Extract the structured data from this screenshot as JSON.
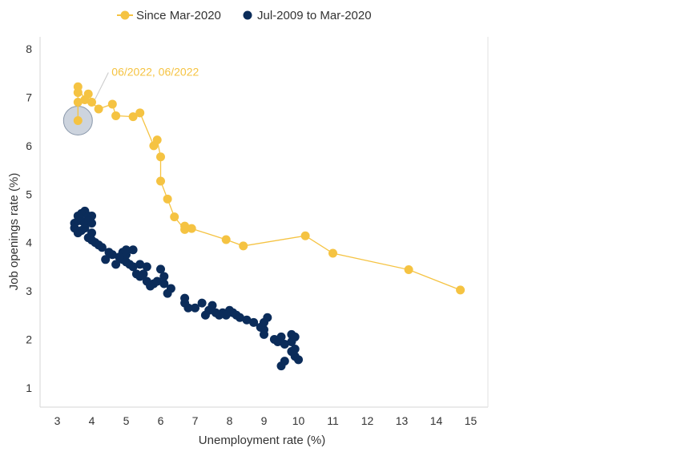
{
  "chart_data": {
    "type": "scatter",
    "xlabel": "Unemployment rate (%)",
    "ylabel": "Job openings rate (%)",
    "xlim": [
      2.5,
      15.5
    ],
    "ylim": [
      0.6,
      8.25
    ],
    "xticks": [
      "3",
      "4",
      "5",
      "6",
      "7",
      "8",
      "9",
      "10",
      "11",
      "12",
      "13",
      "14",
      "15"
    ],
    "yticks": [
      "1",
      "2",
      "3",
      "4",
      "5",
      "6",
      "7",
      "8"
    ],
    "grid": false,
    "legend_position": "top-center",
    "colors": {
      "since_mar_2020": "#f5c342",
      "jul2009_mar2020": "#0b2c5a",
      "highlight": "#a4b1c2"
    },
    "annotation": {
      "text": "06/2022, 06/2022",
      "x": 3.6,
      "y": 6.52
    },
    "series": [
      {
        "name": "Since Mar-2020",
        "style": "line+markers",
        "points": [
          [
            14.7,
            3.02
          ],
          [
            13.2,
            3.44
          ],
          [
            11.0,
            3.78
          ],
          [
            10.2,
            4.14
          ],
          [
            8.4,
            3.93
          ],
          [
            7.9,
            4.06
          ],
          [
            6.9,
            4.29
          ],
          [
            6.7,
            4.34
          ],
          [
            6.7,
            4.27
          ],
          [
            6.4,
            4.53
          ],
          [
            6.2,
            4.9
          ],
          [
            6.0,
            5.27
          ],
          [
            6.0,
            5.77
          ],
          [
            5.9,
            6.12
          ],
          [
            5.8,
            6.0
          ],
          [
            5.4,
            6.68
          ],
          [
            5.2,
            6.6
          ],
          [
            4.7,
            6.62
          ],
          [
            4.6,
            6.86
          ],
          [
            4.2,
            6.76
          ],
          [
            4.0,
            6.9
          ],
          [
            3.9,
            7.07
          ],
          [
            3.8,
            6.95
          ],
          [
            3.6,
            7.22
          ],
          [
            3.6,
            7.1
          ],
          [
            3.6,
            6.9
          ],
          [
            3.6,
            6.52
          ]
        ]
      },
      {
        "name": "Jul-2009 to Mar-2020",
        "style": "markers",
        "points": [
          [
            9.5,
            1.45
          ],
          [
            9.6,
            1.55
          ],
          [
            10.0,
            1.58
          ],
          [
            9.9,
            1.65
          ],
          [
            9.8,
            1.75
          ],
          [
            9.9,
            1.8
          ],
          [
            9.6,
            1.9
          ],
          [
            9.8,
            1.95
          ],
          [
            9.4,
            1.95
          ],
          [
            9.5,
            2.05
          ],
          [
            9.3,
            2.0
          ],
          [
            9.0,
            2.1
          ],
          [
            9.0,
            2.2
          ],
          [
            8.9,
            2.25
          ],
          [
            9.0,
            2.35
          ],
          [
            9.1,
            2.45
          ],
          [
            9.8,
            2.1
          ],
          [
            9.9,
            2.05
          ],
          [
            8.7,
            2.35
          ],
          [
            8.5,
            2.4
          ],
          [
            8.3,
            2.45
          ],
          [
            8.2,
            2.5
          ],
          [
            8.1,
            2.55
          ],
          [
            8.0,
            2.6
          ],
          [
            7.9,
            2.5
          ],
          [
            7.8,
            2.55
          ],
          [
            7.7,
            2.5
          ],
          [
            7.6,
            2.55
          ],
          [
            7.4,
            2.6
          ],
          [
            7.3,
            2.5
          ],
          [
            7.5,
            2.7
          ],
          [
            7.2,
            2.75
          ],
          [
            7.0,
            2.65
          ],
          [
            6.8,
            2.65
          ],
          [
            6.7,
            2.75
          ],
          [
            6.7,
            2.85
          ],
          [
            6.3,
            3.05
          ],
          [
            6.2,
            2.95
          ],
          [
            6.1,
            3.15
          ],
          [
            6.1,
            3.3
          ],
          [
            6.0,
            3.45
          ],
          [
            5.9,
            3.2
          ],
          [
            5.8,
            3.15
          ],
          [
            5.7,
            3.1
          ],
          [
            5.6,
            3.2
          ],
          [
            5.5,
            3.35
          ],
          [
            5.4,
            3.3
          ],
          [
            5.3,
            3.35
          ],
          [
            5.6,
            3.5
          ],
          [
            5.4,
            3.55
          ],
          [
            5.2,
            3.5
          ],
          [
            5.1,
            3.55
          ],
          [
            5.0,
            3.6
          ],
          [
            4.9,
            3.65
          ],
          [
            5.0,
            3.75
          ],
          [
            5.2,
            3.85
          ],
          [
            5.0,
            3.85
          ],
          [
            4.9,
            3.8
          ],
          [
            4.8,
            3.7
          ],
          [
            4.7,
            3.55
          ],
          [
            4.6,
            3.75
          ],
          [
            4.4,
            3.65
          ],
          [
            4.5,
            3.8
          ],
          [
            4.3,
            3.9
          ],
          [
            4.2,
            3.95
          ],
          [
            4.1,
            4.0
          ],
          [
            4.0,
            4.05
          ],
          [
            3.9,
            4.1
          ],
          [
            4.0,
            4.2
          ],
          [
            3.8,
            4.3
          ],
          [
            3.7,
            4.25
          ],
          [
            3.6,
            4.2
          ],
          [
            3.5,
            4.3
          ],
          [
            3.5,
            4.4
          ],
          [
            3.6,
            4.45
          ],
          [
            3.7,
            4.45
          ],
          [
            3.6,
            4.55
          ],
          [
            3.7,
            4.6
          ],
          [
            3.8,
            4.65
          ],
          [
            3.9,
            4.55
          ],
          [
            4.0,
            4.55
          ],
          [
            3.8,
            4.4
          ],
          [
            3.9,
            4.45
          ],
          [
            4.0,
            4.4
          ]
        ]
      }
    ]
  }
}
